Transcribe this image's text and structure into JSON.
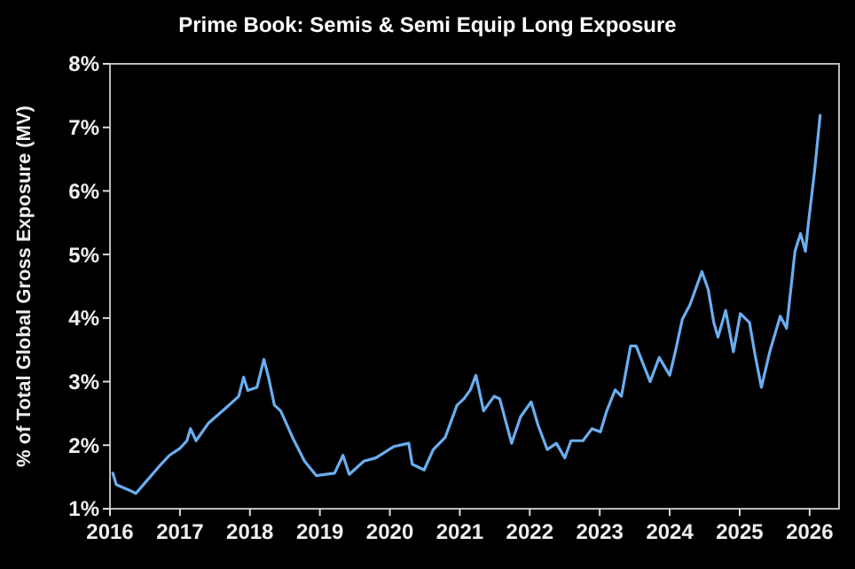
{
  "chart_data": {
    "type": "line",
    "title": "Prime Book: Semis & Semi Equip Long Exposure",
    "ylabel": "% of Total Global Gross Exposure (MV)",
    "xlim": [
      2016,
      2026.42
    ],
    "xticks": [
      2016,
      2017,
      2018,
      2019,
      2020,
      2021,
      2022,
      2023,
      2024,
      2025,
      2026
    ],
    "ylim": [
      1,
      8
    ],
    "yticks": [
      {
        "value": 1,
        "label": "1%"
      },
      {
        "value": 2,
        "label": "2%"
      },
      {
        "value": 3,
        "label": "3%"
      },
      {
        "value": 4,
        "label": "4%"
      },
      {
        "value": 5,
        "label": "5%"
      },
      {
        "value": 6,
        "label": "6%"
      },
      {
        "value": 7,
        "label": "7%"
      },
      {
        "value": 8,
        "label": "8%"
      }
    ],
    "grid": false,
    "marker": "none",
    "line_style": "solid",
    "series": [
      {
        "color": "#6aaef0",
        "x": [
          2016.04,
          2016.09,
          2016.3,
          2016.37,
          2016.51,
          2016.73,
          2016.85,
          2017.0,
          2017.1,
          2017.15,
          2017.23,
          2017.41,
          2017.66,
          2017.84,
          2017.91,
          2017.97,
          2018.1,
          2018.2,
          2018.27,
          2018.35,
          2018.44,
          2018.61,
          2018.78,
          2018.95,
          2019.21,
          2019.33,
          2019.42,
          2019.63,
          2019.8,
          2020.06,
          2020.27,
          2020.32,
          2020.49,
          2020.62,
          2020.79,
          2020.96,
          2021.06,
          2021.15,
          2021.23,
          2021.34,
          2021.49,
          2021.57,
          2021.74,
          2021.87,
          2022.02,
          2022.12,
          2022.25,
          2022.38,
          2022.5,
          2022.59,
          2022.76,
          2022.89,
          2023.01,
          2023.1,
          2023.22,
          2023.31,
          2023.44,
          2023.52,
          2023.72,
          2023.85,
          2024.0,
          2024.08,
          2024.18,
          2024.29,
          2024.46,
          2024.55,
          2024.63,
          2024.69,
          2024.8,
          2024.91,
          2025.01,
          2025.14,
          2025.22,
          2025.31,
          2025.43,
          2025.58,
          2025.67,
          2025.79,
          2025.87,
          2025.94,
          2025.98,
          2026.07,
          2026.15
        ],
        "values": [
          1.56,
          1.38,
          1.28,
          1.24,
          1.42,
          1.7,
          1.84,
          1.95,
          2.07,
          2.26,
          2.07,
          2.35,
          2.59,
          2.77,
          3.07,
          2.86,
          2.91,
          3.35,
          3.05,
          2.63,
          2.54,
          2.12,
          1.75,
          1.52,
          1.56,
          1.84,
          1.54,
          1.75,
          1.8,
          1.98,
          2.03,
          1.7,
          1.61,
          1.93,
          2.12,
          2.63,
          2.73,
          2.87,
          3.1,
          2.54,
          2.77,
          2.73,
          2.03,
          2.45,
          2.68,
          2.31,
          1.93,
          2.03,
          1.8,
          2.07,
          2.07,
          2.26,
          2.21,
          2.54,
          2.87,
          2.77,
          3.56,
          3.56,
          3.0,
          3.38,
          3.1,
          3.47,
          3.98,
          4.21,
          4.73,
          4.45,
          3.93,
          3.7,
          4.12,
          3.47,
          4.07,
          3.93,
          3.42,
          2.91,
          3.47,
          4.03,
          3.84,
          5.05,
          5.33,
          5.05,
          5.47,
          6.31,
          7.19
        ]
      }
    ]
  }
}
